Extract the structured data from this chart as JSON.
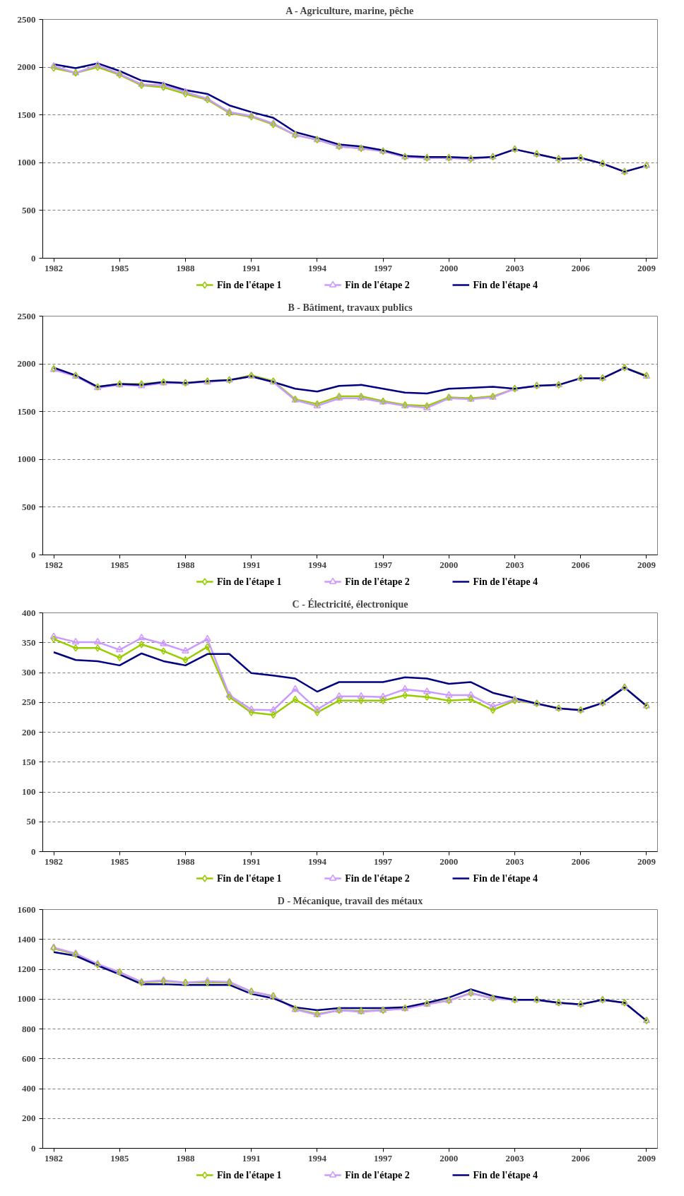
{
  "chart_data": [
    {
      "type": "line",
      "title": "A - Agriculture, marine, pêche",
      "x": [
        1982,
        1983,
        1984,
        1985,
        1986,
        1987,
        1988,
        1989,
        1990,
        1991,
        1992,
        1993,
        1994,
        1995,
        1996,
        1997,
        1998,
        1999,
        2000,
        2001,
        2002,
        2003,
        2004,
        2005,
        2006,
        2007,
        2008,
        2009
      ],
      "xlim": [
        1981.5,
        2009.5
      ],
      "xticks": [
        1982,
        1985,
        1988,
        1991,
        1994,
        1997,
        2000,
        2003,
        2006,
        2009
      ],
      "ylim": [
        0,
        2500
      ],
      "yticks": [
        0,
        500,
        1000,
        1500,
        2000,
        2500
      ],
      "grid": "y",
      "legend": "bottom",
      "series": [
        {
          "name": "Fin de l'étape 1",
          "color": "#99cc00",
          "marker": "diamond",
          "values": [
            1990,
            1940,
            2000,
            1920,
            1810,
            1790,
            1720,
            1660,
            1520,
            1480,
            1400,
            1290,
            1240,
            1170,
            1150,
            1120,
            1060,
            1050,
            1050,
            1040,
            1060,
            1140,
            1090,
            1040,
            1050,
            990,
            905,
            970
          ]
        },
        {
          "name": "Fin de l'étape 2",
          "color": "#cc99ff",
          "marker": "triangle",
          "values": [
            2010,
            1940,
            2020,
            1930,
            1820,
            1810,
            1740,
            1670,
            1530,
            1490,
            1410,
            1290,
            1240,
            1170,
            1150,
            1120,
            1060,
            1050,
            1050,
            1040,
            1060,
            1140,
            1090,
            1040,
            1050,
            990,
            905,
            970
          ]
        },
        {
          "name": "Fin de l'étape 4",
          "color": "#000080",
          "marker": "none",
          "values": [
            2030,
            1990,
            2040,
            1960,
            1860,
            1830,
            1760,
            1720,
            1600,
            1530,
            1470,
            1320,
            1260,
            1190,
            1170,
            1130,
            1070,
            1060,
            1060,
            1050,
            1060,
            1140,
            1090,
            1040,
            1050,
            990,
            905,
            970
          ]
        }
      ]
    },
    {
      "type": "line",
      "title": "B - Bâtiment, travaux publics",
      "x": [
        1982,
        1983,
        1984,
        1985,
        1986,
        1987,
        1988,
        1989,
        1990,
        1991,
        1992,
        1993,
        1994,
        1995,
        1996,
        1997,
        1998,
        1999,
        2000,
        2001,
        2002,
        2003,
        2004,
        2005,
        2006,
        2007,
        2008,
        2009
      ],
      "xlim": [
        1981.5,
        2009.5
      ],
      "xticks": [
        1982,
        1985,
        1988,
        1991,
        1994,
        1997,
        2000,
        2003,
        2006,
        2009
      ],
      "ylim": [
        0,
        2500
      ],
      "yticks": [
        0,
        500,
        1000,
        1500,
        2000,
        2500
      ],
      "grid": "y",
      "legend": "bottom",
      "series": [
        {
          "name": "Fin de l'étape 1",
          "color": "#99cc00",
          "marker": "diamond",
          "values": [
            1950,
            1880,
            1760,
            1790,
            1790,
            1810,
            1800,
            1820,
            1830,
            1880,
            1820,
            1630,
            1580,
            1660,
            1660,
            1610,
            1570,
            1560,
            1650,
            1640,
            1660,
            1740,
            1770,
            1780,
            1850,
            1850,
            1960,
            1880
          ]
        },
        {
          "name": "Fin de l'étape 2",
          "color": "#cc99ff",
          "marker": "triangle",
          "values": [
            1940,
            1870,
            1750,
            1780,
            1770,
            1800,
            1800,
            1810,
            1830,
            1870,
            1810,
            1620,
            1560,
            1640,
            1640,
            1600,
            1560,
            1540,
            1640,
            1630,
            1650,
            1740,
            1770,
            1780,
            1850,
            1850,
            1960,
            1870
          ]
        },
        {
          "name": "Fin de l'étape 4",
          "color": "#000080",
          "marker": "none",
          "values": [
            1960,
            1880,
            1760,
            1790,
            1780,
            1810,
            1800,
            1820,
            1830,
            1870,
            1810,
            1740,
            1710,
            1770,
            1780,
            1740,
            1700,
            1690,
            1740,
            1750,
            1760,
            1740,
            1770,
            1780,
            1850,
            1850,
            1960,
            1870
          ]
        }
      ]
    },
    {
      "type": "line",
      "title": "C - Électricité, électronique",
      "x": [
        1982,
        1983,
        1984,
        1985,
        1986,
        1987,
        1988,
        1989,
        1990,
        1991,
        1992,
        1993,
        1994,
        1995,
        1996,
        1997,
        1998,
        1999,
        2000,
        2001,
        2002,
        2003,
        2004,
        2005,
        2006,
        2007,
        2008,
        2009
      ],
      "xlim": [
        1981.5,
        2009.5
      ],
      "xticks": [
        1982,
        1985,
        1988,
        1991,
        1994,
        1997,
        2000,
        2003,
        2006,
        2009
      ],
      "ylim": [
        0,
        400
      ],
      "yticks": [
        0,
        50,
        100,
        150,
        200,
        250,
        300,
        350,
        400
      ],
      "grid": "y",
      "legend": "bottom",
      "series": [
        {
          "name": "Fin de l'étape 1",
          "color": "#99cc00",
          "marker": "diamond",
          "values": [
            356,
            341,
            341,
            325,
            347,
            336,
            321,
            343,
            259,
            233,
            229,
            255,
            233,
            253,
            253,
            253,
            262,
            259,
            253,
            255,
            237,
            253,
            248,
            240,
            237,
            249,
            275,
            244
          ]
        },
        {
          "name": "Fin de l'étape 2",
          "color": "#cc99ff",
          "marker": "triangle",
          "values": [
            360,
            351,
            351,
            338,
            358,
            348,
            336,
            356,
            262,
            238,
            237,
            272,
            238,
            260,
            260,
            259,
            272,
            268,
            262,
            262,
            243,
            255,
            248,
            240,
            237,
            249,
            275,
            244
          ]
        },
        {
          "name": "Fin de l'étape 4",
          "color": "#000080",
          "marker": "none",
          "values": [
            334,
            321,
            319,
            312,
            332,
            319,
            312,
            331,
            331,
            299,
            295,
            290,
            268,
            284,
            284,
            284,
            292,
            290,
            281,
            284,
            266,
            257,
            248,
            240,
            237,
            249,
            275,
            244
          ]
        }
      ]
    },
    {
      "type": "line",
      "title": "D - Mécanique, travail des métaux",
      "x": [
        1982,
        1983,
        1984,
        1985,
        1986,
        1987,
        1988,
        1989,
        1990,
        1991,
        1992,
        1993,
        1994,
        1995,
        1996,
        1997,
        1998,
        1999,
        2000,
        2001,
        2002,
        2003,
        2004,
        2005,
        2006,
        2007,
        2008,
        2009
      ],
      "xlim": [
        1981.5,
        2009.5
      ],
      "xticks": [
        1982,
        1985,
        1988,
        1991,
        1994,
        1997,
        2000,
        2003,
        2006,
        2009
      ],
      "ylim": [
        0,
        1600
      ],
      "yticks": [
        0,
        200,
        400,
        600,
        800,
        1000,
        1200,
        1400,
        1600
      ],
      "grid": "y",
      "legend": "bottom",
      "series": [
        {
          "name": "Fin de l'étape 1",
          "color": "#99cc00",
          "marker": "diamond",
          "values": [
            1340,
            1300,
            1230,
            1180,
            1110,
            1120,
            1110,
            1110,
            1110,
            1050,
            1020,
            935,
            900,
            925,
            920,
            925,
            940,
            970,
            990,
            1040,
            1005,
            995,
            995,
            975,
            965,
            995,
            975,
            855
          ]
        },
        {
          "name": "Fin de l'étape 2",
          "color": "#cc99ff",
          "marker": "triangle",
          "values": [
            1345,
            1305,
            1235,
            1180,
            1115,
            1125,
            1110,
            1120,
            1115,
            1050,
            1020,
            930,
            895,
            925,
            915,
            925,
            935,
            965,
            990,
            1040,
            1005,
            995,
            995,
            975,
            965,
            995,
            975,
            855
          ]
        },
        {
          "name": "Fin de l'étape 4",
          "color": "#000080",
          "marker": "none",
          "values": [
            1315,
            1290,
            1225,
            1165,
            1100,
            1100,
            1095,
            1095,
            1095,
            1035,
            1005,
            945,
            925,
            940,
            940,
            940,
            945,
            975,
            1010,
            1065,
            1020,
            995,
            995,
            975,
            965,
            995,
            975,
            855
          ]
        }
      ]
    }
  ]
}
